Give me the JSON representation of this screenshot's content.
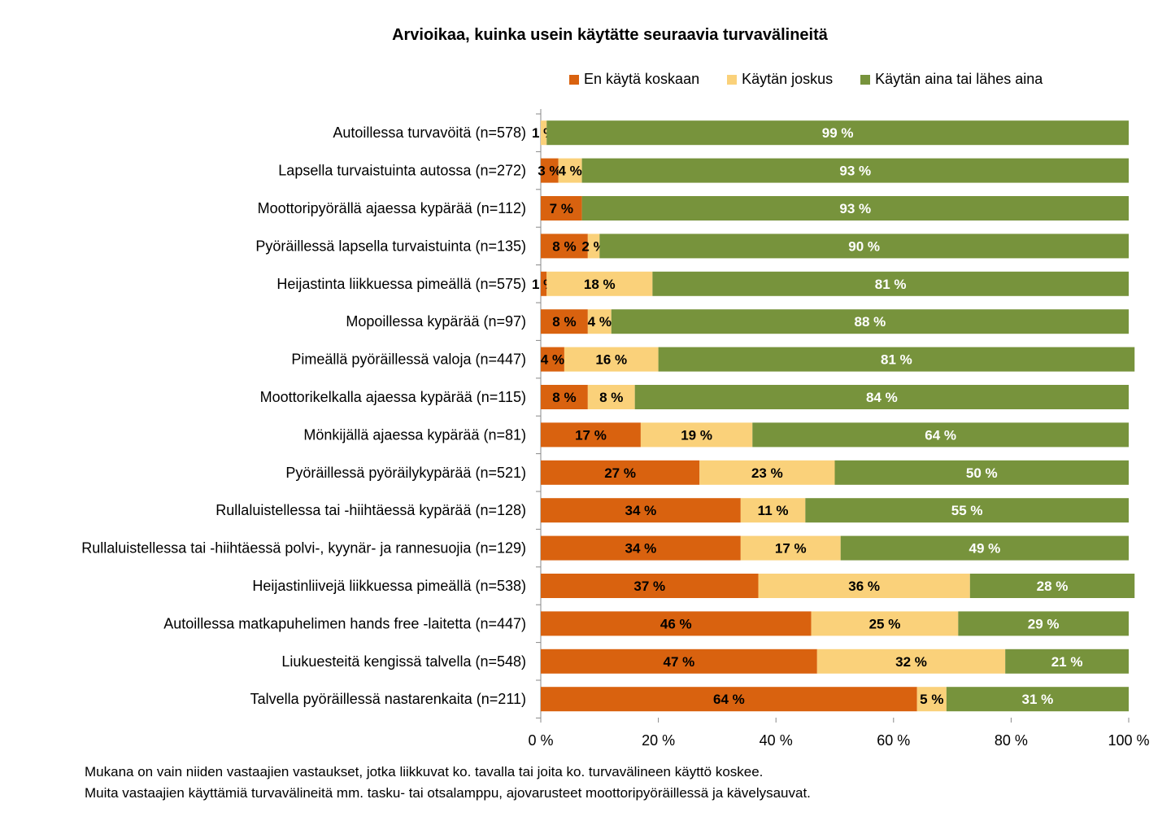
{
  "chart_data": {
    "type": "bar",
    "orientation": "horizontal",
    "stacked": true,
    "title": "Arvioikaa, kuinka usein käytätte seuraavia turvavälineitä",
    "xlim": [
      0,
      100
    ],
    "x_ticks": [
      "0 %",
      "20 %",
      "40 %",
      "60 %",
      "80 %",
      "100 %"
    ],
    "legend_position": "top-right",
    "categories": [
      "Autoillessa turvavöitä (n=578)",
      "Lapsella turvaistuinta autossa (n=272)",
      "Moottoripyörällä ajaessa kypärää (n=112)",
      "Pyöräillessä lapsella turvaistuinta (n=135)",
      "Heijastinta liikkuessa pimeällä (n=575)",
      "Mopoillessa kypärää (n=97)",
      "Pimeällä pyöräillessä valoja (n=447)",
      "Moottorikelkalla ajaessa kypärää (n=115)",
      "Mönkijällä ajaessa kypärää (n=81)",
      "Pyöräillessä pyöräilykypärää (n=521)",
      "Rullaluistellessa tai -hiihtäessä kypärää (n=128)",
      "Rullaluistellessa tai -hiihtäessä polvi-, kyynär- ja rannesuojia (n=129)",
      "Heijastinliivejä liikkuessa pimeällä (n=538)",
      "Autoillessa matkapuhelimen hands free -laitetta (n=447)",
      "Liukuesteitä kengissä talvella (n=548)",
      "Talvella pyöräillessä nastarenkaita (n=211)"
    ],
    "series": [
      {
        "name": "En käytä koskaan",
        "color": "#d9620f",
        "values": [
          0,
          3,
          7,
          8,
          1,
          8,
          4,
          8,
          17,
          27,
          34,
          34,
          37,
          46,
          47,
          64
        ],
        "labels": [
          "",
          "3 %",
          "7 %",
          "8 %",
          "1 %",
          "8 %",
          "4 %",
          "8 %",
          "17 %",
          "27 %",
          "34 %",
          "34 %",
          "37 %",
          "46 %",
          "47 %",
          "64 %"
        ]
      },
      {
        "name": "Käytän joskus",
        "color": "#fad17a",
        "values": [
          1,
          4,
          0,
          2,
          18,
          4,
          16,
          8,
          19,
          23,
          11,
          17,
          36,
          25,
          32,
          5
        ],
        "labels": [
          "1 %",
          "4 %",
          "",
          "2 %",
          "18 %",
          "4 %",
          "16 %",
          "8 %",
          "19 %",
          "23 %",
          "11 %",
          "17 %",
          "36 %",
          "25 %",
          "32 %",
          "5 %"
        ]
      },
      {
        "name": "Käytän aina tai lähes aina",
        "color": "#77933c",
        "values": [
          99,
          93,
          93,
          90,
          81,
          88,
          81,
          84,
          64,
          50,
          55,
          49,
          28,
          29,
          21,
          31
        ],
        "labels": [
          "99 %",
          "93 %",
          "93 %",
          "90 %",
          "81 %",
          "88 %",
          "81 %",
          "84 %",
          "64 %",
          "50 %",
          "55 %",
          "49 %",
          "28 %",
          "29 %",
          "21 %",
          "31 %"
        ]
      }
    ]
  },
  "note": {
    "line1": "Mukana on vain niiden vastaajien vastaukset, jotka liikkuvat ko. tavalla tai joita ko.  turvavälineen käyttö koskee.",
    "line2": "Muita vastaajien käyttämiä turvavälineitä mm.  tasku- tai otsalamppu,  ajovarusteet moottoripyöräillessä ja kävelysauvat."
  }
}
